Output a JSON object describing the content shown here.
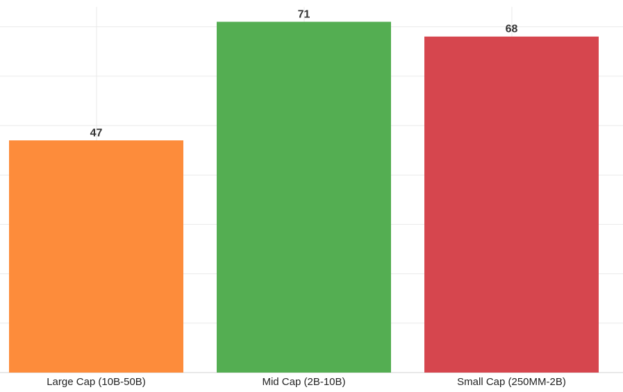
{
  "chart_data": {
    "type": "bar",
    "title": "",
    "xlabel": "",
    "ylabel": "",
    "categories": [
      "Large Cap (10B-50B)",
      "Mid Cap (2B-10B)",
      "Small Cap (250MM-2B)"
    ],
    "values": [
      47,
      71,
      68
    ],
    "data_labels": [
      "47",
      "71",
      "68"
    ],
    "colors": [
      "#fd8c3b",
      "#54ae52",
      "#d6464e"
    ],
    "ylim": [
      0,
      74
    ],
    "grid": true,
    "legend": "none"
  }
}
